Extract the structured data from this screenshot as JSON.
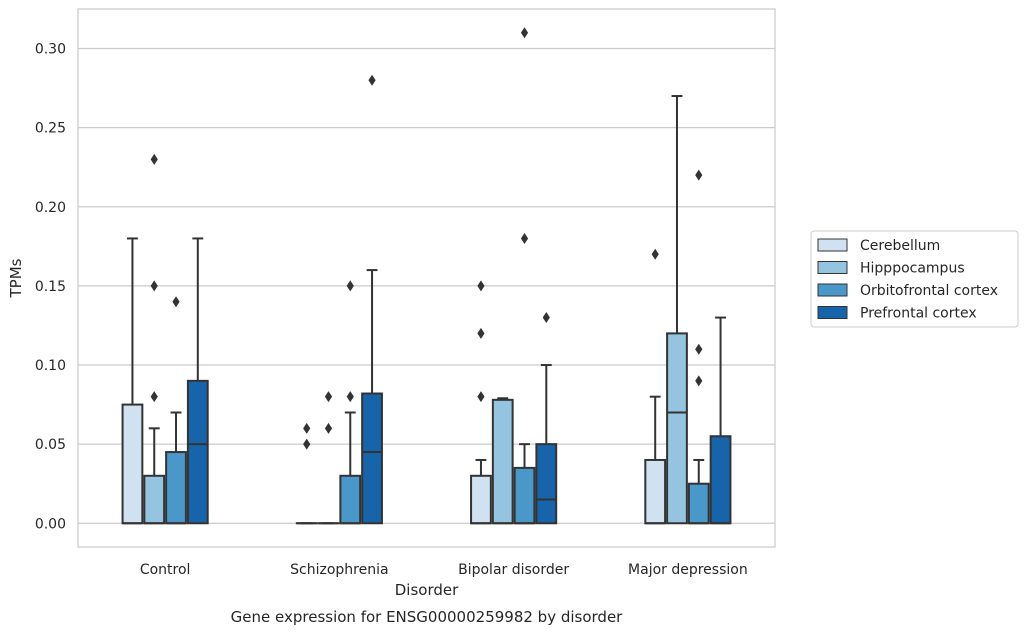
{
  "chart_data": {
    "type": "boxplot",
    "title": "Gene expression for ENSG00000259982 by disorder",
    "xlabel": "Disorder",
    "ylabel": "TPMs",
    "ylim": [
      -0.015,
      0.325
    ],
    "yticks": [
      0.0,
      0.05,
      0.1,
      0.15,
      0.2,
      0.25,
      0.3
    ],
    "ytick_labels": [
      "0.00",
      "0.05",
      "0.10",
      "0.15",
      "0.20",
      "0.25",
      "0.30"
    ],
    "grid": "horizontal",
    "legend_position": "right",
    "categories": [
      "Control",
      "Schizophrenia",
      "Bipolar disorder",
      "Major depression"
    ],
    "series": [
      {
        "name": "Cerebellum",
        "color": "#d0e1f2",
        "boxes": [
          {
            "whislo": 0.0,
            "q1": 0.0,
            "med": 0.0,
            "q3": 0.075,
            "whishi": 0.18,
            "fliers": []
          },
          {
            "whislo": 0.0,
            "q1": 0.0,
            "med": 0.0,
            "q3": 0.0,
            "whishi": 0.0,
            "fliers": [
              0.05,
              0.06
            ]
          },
          {
            "whislo": 0.0,
            "q1": 0.0,
            "med": 0.0,
            "q3": 0.03,
            "whishi": 0.04,
            "fliers": [
              0.08,
              0.12,
              0.15
            ]
          },
          {
            "whislo": 0.0,
            "q1": 0.0,
            "med": 0.0,
            "q3": 0.04,
            "whishi": 0.08,
            "fliers": [
              0.17
            ]
          }
        ]
      },
      {
        "name": "Hipppocampus",
        "color": "#94c4df",
        "boxes": [
          {
            "whislo": 0.0,
            "q1": 0.0,
            "med": 0.0,
            "q3": 0.03,
            "whishi": 0.06,
            "fliers": [
              0.08,
              0.15,
              0.23
            ]
          },
          {
            "whislo": 0.0,
            "q1": 0.0,
            "med": 0.0,
            "q3": 0.0,
            "whishi": 0.0,
            "fliers": [
              0.06,
              0.08
            ]
          },
          {
            "whislo": 0.0,
            "q1": 0.0,
            "med": 0.0,
            "q3": 0.078,
            "whishi": 0.079,
            "fliers": []
          },
          {
            "whislo": 0.0,
            "q1": 0.0,
            "med": 0.07,
            "q3": 0.12,
            "whishi": 0.27,
            "fliers": []
          }
        ]
      },
      {
        "name": "Orbitofrontal cortex",
        "color": "#4a98c9",
        "boxes": [
          {
            "whislo": 0.0,
            "q1": 0.0,
            "med": 0.0,
            "q3": 0.045,
            "whishi": 0.07,
            "fliers": [
              0.14
            ]
          },
          {
            "whislo": 0.0,
            "q1": 0.0,
            "med": 0.0,
            "q3": 0.03,
            "whishi": 0.07,
            "fliers": [
              0.08,
              0.15
            ]
          },
          {
            "whislo": 0.0,
            "q1": 0.0,
            "med": 0.0,
            "q3": 0.035,
            "whishi": 0.05,
            "fliers": [
              0.18,
              0.31
            ]
          },
          {
            "whislo": 0.0,
            "q1": 0.0,
            "med": 0.0,
            "q3": 0.025,
            "whishi": 0.04,
            "fliers": [
              0.09,
              0.11,
              0.22
            ]
          }
        ]
      },
      {
        "name": "Prefrontal cortex",
        "color": "#1764ab",
        "boxes": [
          {
            "whislo": 0.0,
            "q1": 0.0,
            "med": 0.05,
            "q3": 0.09,
            "whishi": 0.18,
            "fliers": []
          },
          {
            "whislo": 0.0,
            "q1": 0.0,
            "med": 0.045,
            "q3": 0.082,
            "whishi": 0.16,
            "fliers": [
              0.28
            ]
          },
          {
            "whislo": 0.0,
            "q1": 0.0,
            "med": 0.015,
            "q3": 0.05,
            "whishi": 0.1,
            "fliers": [
              0.13
            ]
          },
          {
            "whislo": 0.0,
            "q1": 0.0,
            "med": 0.0,
            "q3": 0.055,
            "whishi": 0.13,
            "fliers": []
          }
        ]
      }
    ]
  }
}
